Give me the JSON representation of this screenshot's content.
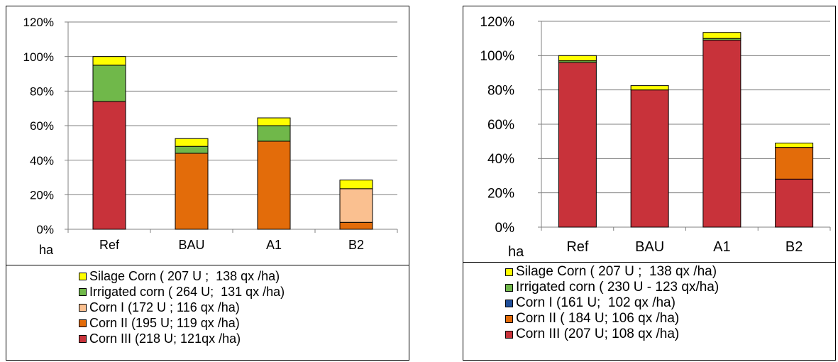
{
  "chart_data": [
    {
      "type": "bar",
      "stacked": true,
      "unit_label": "ha",
      "categories": [
        "Ref",
        "BAU",
        "A1",
        "B2"
      ],
      "yticks": [
        "0%",
        "20%",
        "40%",
        "60%",
        "80%",
        "100%",
        "120%"
      ],
      "ylim": [
        0,
        120
      ],
      "grid": true,
      "legend_position": "bottom",
      "series": [
        {
          "name": "Corn III (218 U; 121qx /ha)",
          "color": "#c8323a",
          "values": [
            74,
            0,
            0,
            0
          ]
        },
        {
          "name": "Corn II (195 U; 119 qx /ha)",
          "color": "#e36c0a",
          "values": [
            0,
            44,
            51,
            4
          ]
        },
        {
          "name": "Corn I (172 U ; 116 qx /ha)",
          "color": "#fac090",
          "values": [
            0,
            0,
            0,
            19.5
          ]
        },
        {
          "name": "Irrigated corn ( 264 U;  131 qx /ha)",
          "color": "#70b84a",
          "values": [
            21,
            4,
            9,
            0
          ]
        },
        {
          "name": "Silage Corn ( 207 U ;  138 qx /ha)",
          "color": "#ffff00",
          "values": [
            5,
            4.5,
            4.5,
            5
          ]
        }
      ]
    },
    {
      "type": "bar",
      "stacked": true,
      "unit_label": "ha",
      "categories": [
        "Ref",
        "BAU",
        "A1",
        "B2"
      ],
      "yticks": [
        "0%",
        "20%",
        "40%",
        "60%",
        "80%",
        "100%",
        "120%"
      ],
      "ylim": [
        0,
        120
      ],
      "grid": true,
      "legend_position": "bottom",
      "series": [
        {
          "name": "Corn III (207 U; 108 qx /ha)",
          "color": "#c8323a",
          "values": [
            96,
            80,
            109,
            28
          ]
        },
        {
          "name": "Corn II ( 184 U; 106 qx /ha)",
          "color": "#e36c0a",
          "values": [
            0,
            0,
            0,
            18.5
          ]
        },
        {
          "name": "Corn I (161 U;  102 qx /ha)",
          "color": "#1f4e9a",
          "values": [
            0,
            0,
            0,
            0
          ]
        },
        {
          "name": "Irrigated corn ( 230 U - 123 qx/ha)",
          "color": "#70b84a",
          "values": [
            1,
            0,
            1,
            0
          ]
        },
        {
          "name": "Silage Corn ( 207 U ;  138 qx /ha)",
          "color": "#ffff00",
          "values": [
            3,
            2.5,
            3.5,
            2.5
          ]
        }
      ]
    }
  ]
}
